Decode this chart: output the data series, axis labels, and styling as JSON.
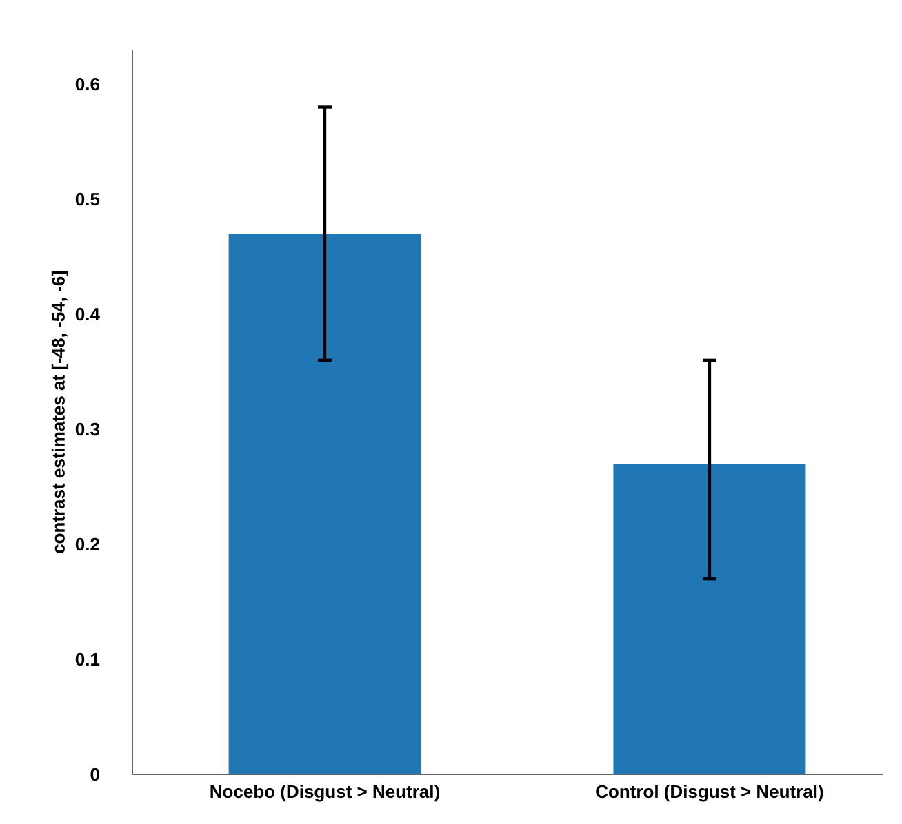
{
  "chart_data": {
    "type": "bar",
    "ylabel": "contrast estimates at [-48, -54, -6]",
    "categories": [
      "Nocebo (Disgust > Neutral)",
      "Control (Disgust > Neutral)"
    ],
    "values": [
      0.47,
      0.27
    ],
    "color": "#2176b4",
    "errors": [
      [
        0.36,
        0.58
      ],
      [
        0.17,
        0.36
      ]
    ],
    "ylim": [
      0,
      0.63
    ],
    "yticks": [
      0,
      0.1,
      0.2,
      0.3,
      0.4,
      0.5,
      0.6
    ],
    "grid": false,
    "legend": false
  }
}
